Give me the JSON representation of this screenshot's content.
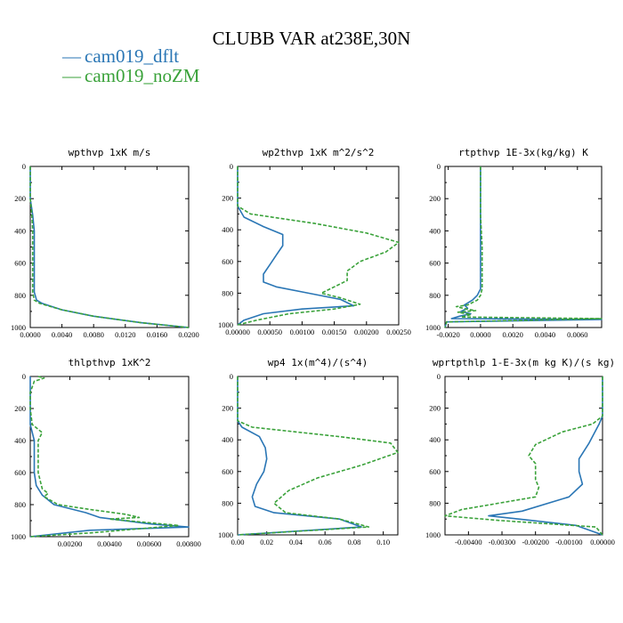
{
  "title": "CLUBB VAR at238E,30N",
  "colors": {
    "dflt": "#2a76b5",
    "noZM": "#3aa23a"
  },
  "legend": [
    {
      "label": "cam019_dflt",
      "color": "#2a76b5",
      "symbol": "—"
    },
    {
      "label": "cam019_noZM",
      "color": "#3aa23a",
      "symbol": "—"
    }
  ],
  "chart_data": [
    {
      "type": "line",
      "title": "wpthvp  1xK m/s",
      "xlim": [
        0,
        0.02
      ],
      "ylim": [
        1000,
        0
      ],
      "xticks": [
        0.0,
        0.004,
        0.008,
        0.012,
        0.016,
        0.02
      ],
      "xtick_labels": [
        "0.0000",
        "0.0040",
        "0.0080",
        "0.0120",
        "0.0160",
        "0.0200"
      ],
      "yticks": [
        0,
        200,
        400,
        600,
        800,
        1000
      ],
      "ytick_labels": [
        "0",
        "200",
        "400",
        "600",
        "800",
        "1000"
      ],
      "series": [
        {
          "name": "cam019_dflt",
          "points": [
            [
              0.0,
              0
            ],
            [
              0.0,
              200
            ],
            [
              0.0003,
              300
            ],
            [
              0.0005,
              400
            ],
            [
              0.0005,
              500
            ],
            [
              0.0005,
              600
            ],
            [
              0.0005,
              700
            ],
            [
              0.0005,
              780
            ],
            [
              0.0008,
              830
            ],
            [
              0.0015,
              850
            ],
            [
              0.004,
              890
            ],
            [
              0.008,
              930
            ],
            [
              0.014,
              970
            ],
            [
              0.02,
              1000
            ]
          ]
        },
        {
          "name": "cam019_noZM",
          "points": [
            [
              0.0,
              0
            ],
            [
              0.0,
              200
            ],
            [
              0.0002,
              300
            ],
            [
              0.0003,
              400
            ],
            [
              0.0003,
              500
            ],
            [
              0.0003,
              600
            ],
            [
              0.0003,
              700
            ],
            [
              0.0003,
              780
            ],
            [
              0.0005,
              830
            ],
            [
              0.0012,
              850
            ],
            [
              0.004,
              890
            ],
            [
              0.008,
              930
            ],
            [
              0.014,
              970
            ],
            [
              0.02,
              1000
            ]
          ]
        }
      ]
    },
    {
      "type": "line",
      "title": "wp2thvp  1xK m^2/s^2",
      "xlim": [
        0,
        0.0025
      ],
      "ylim": [
        1000,
        0
      ],
      "xticks": [
        0.0,
        0.0005,
        0.001,
        0.0015,
        0.002,
        0.0025
      ],
      "xtick_labels": [
        "0.00000",
        "0.00050",
        "0.00100",
        "0.00150",
        "0.00200",
        "0.00250"
      ],
      "yticks": [
        0,
        200,
        400,
        600,
        800,
        1000
      ],
      "ytick_labels": [
        "0",
        "200",
        "400",
        "600",
        "800",
        "1000"
      ],
      "series": [
        {
          "name": "cam019_dflt",
          "points": [
            [
              0.0,
              0
            ],
            [
              0.0,
              150
            ],
            [
              0.0,
              250
            ],
            [
              0.0001,
              320
            ],
            [
              0.0004,
              380
            ],
            [
              0.0007,
              430
            ],
            [
              0.0007,
              500
            ],
            [
              0.0006,
              560
            ],
            [
              0.0005,
              620
            ],
            [
              0.0004,
              680
            ],
            [
              0.0004,
              730
            ],
            [
              0.0006,
              760
            ],
            [
              0.0011,
              800
            ],
            [
              0.0016,
              840
            ],
            [
              0.0018,
              880
            ],
            [
              0.001,
              900
            ],
            [
              0.0004,
              930
            ],
            [
              0.0001,
              970
            ],
            [
              0.0,
              1000
            ]
          ]
        },
        {
          "name": "cam019_noZM",
          "points": [
            [
              0.0,
              0
            ],
            [
              0.0,
              150
            ],
            [
              0.0,
              250
            ],
            [
              0.0002,
              300
            ],
            [
              0.0012,
              360
            ],
            [
              0.002,
              420
            ],
            [
              0.0025,
              480
            ],
            [
              0.0023,
              540
            ],
            [
              0.0019,
              600
            ],
            [
              0.0017,
              660
            ],
            [
              0.0017,
              720
            ],
            [
              0.0015,
              760
            ],
            [
              0.0013,
              800
            ],
            [
              0.0016,
              830
            ],
            [
              0.0019,
              870
            ],
            [
              0.0015,
              900
            ],
            [
              0.0008,
              930
            ],
            [
              0.0003,
              970
            ],
            [
              0.0,
              1000
            ]
          ]
        }
      ]
    },
    {
      "type": "line",
      "title": "rtpthvp  1E-3x(kg/kg) K",
      "xlim": [
        -0.0022,
        0.0075
      ],
      "ylim": [
        1000,
        0
      ],
      "xticks": [
        -0.002,
        0.0,
        0.002,
        0.004,
        0.006
      ],
      "xtick_labels": [
        "-0.0020",
        "0.0000",
        "0.0020",
        "0.0040",
        "0.0060"
      ],
      "yticks": [
        0,
        200,
        400,
        600,
        800,
        1000
      ],
      "ytick_labels": [
        "0",
        "200",
        "400",
        "600",
        "800",
        "1000"
      ],
      "series": [
        {
          "name": "cam019_dflt",
          "points": [
            [
              0.0,
              0
            ],
            [
              0.0,
              300
            ],
            [
              0.0,
              500
            ],
            [
              0.0,
              650
            ],
            [
              0.0,
              760
            ],
            [
              -0.0002,
              800
            ],
            [
              -0.0005,
              830
            ],
            [
              -0.001,
              860
            ],
            [
              -0.0008,
              880
            ],
            [
              -0.0012,
              900
            ],
            [
              -0.0006,
              915
            ],
            [
              -0.0013,
              930
            ],
            [
              -0.0018,
              945
            ],
            [
              0.0075,
              950
            ],
            [
              -0.0021,
              965
            ],
            [
              -0.0022,
              1000
            ]
          ]
        },
        {
          "name": "cam019_noZM",
          "points": [
            [
              0.0,
              0
            ],
            [
              0.0,
              300
            ],
            [
              0.0001,
              500
            ],
            [
              0.0001,
              650
            ],
            [
              0.0001,
              760
            ],
            [
              0.0,
              800
            ],
            [
              -0.0002,
              830
            ],
            [
              -0.0008,
              860
            ],
            [
              -0.0015,
              870
            ],
            [
              -0.0009,
              885
            ],
            [
              -0.0003,
              895
            ],
            [
              -0.0014,
              905
            ],
            [
              -0.0006,
              920
            ],
            [
              -0.0012,
              935
            ],
            [
              0.0075,
              945
            ],
            [
              -0.0021,
              965
            ],
            [
              -0.0022,
              1000
            ]
          ]
        }
      ]
    },
    {
      "type": "line",
      "title": "thlpthvp  1xK^2",
      "xlim": [
        0,
        0.008
      ],
      "ylim": [
        1000,
        0
      ],
      "xticks": [
        0.002,
        0.004,
        0.006,
        0.008
      ],
      "xtick_labels": [
        "0.00200",
        "0.00400",
        "0.00600",
        "0.00800"
      ],
      "yticks": [
        0,
        200,
        400,
        600,
        800,
        1000
      ],
      "ytick_labels": [
        "0",
        "200",
        "400",
        "600",
        "800",
        "1000"
      ],
      "series": [
        {
          "name": "cam019_dflt",
          "points": [
            [
              0.0,
              0
            ],
            [
              0.0,
              200
            ],
            [
              0.0,
              300
            ],
            [
              0.0002,
              400
            ],
            [
              0.0002,
              500
            ],
            [
              0.0002,
              600
            ],
            [
              0.0003,
              680
            ],
            [
              0.0006,
              740
            ],
            [
              0.0012,
              800
            ],
            [
              0.0028,
              850
            ],
            [
              0.0035,
              880
            ],
            [
              0.006,
              920
            ],
            [
              0.008,
              940
            ],
            [
              0.003,
              960
            ],
            [
              0.0,
              1000
            ]
          ]
        },
        {
          "name": "cam019_noZM",
          "points": [
            [
              0.0004,
              0
            ],
            [
              0.0007,
              10
            ],
            [
              0.0002,
              30
            ],
            [
              0.0,
              100
            ],
            [
              0.0,
              200
            ],
            [
              0.0001,
              300
            ],
            [
              0.0006,
              350
            ],
            [
              0.0004,
              400
            ],
            [
              0.0004,
              500
            ],
            [
              0.0004,
              600
            ],
            [
              0.0006,
              700
            ],
            [
              0.0009,
              730
            ],
            [
              0.0007,
              750
            ],
            [
              0.0014,
              800
            ],
            [
              0.003,
              830
            ],
            [
              0.0048,
              860
            ],
            [
              0.0055,
              880
            ],
            [
              0.004,
              890
            ],
            [
              0.0075,
              930
            ],
            [
              0.0032,
              975
            ],
            [
              0.0,
              1000
            ]
          ]
        }
      ]
    },
    {
      "type": "line",
      "title": "wp4  1x(m^4)/(s^4)",
      "xlim": [
        0,
        0.11
      ],
      "ylim": [
        1000,
        0
      ],
      "xticks": [
        0.0,
        0.02,
        0.04,
        0.06,
        0.08,
        0.1
      ],
      "xtick_labels": [
        "0.00",
        "0.02",
        "0.04",
        "0.06",
        "0.08",
        "0.10"
      ],
      "yticks": [
        0,
        200,
        400,
        600,
        800,
        1000
      ],
      "ytick_labels": [
        "0",
        "200",
        "400",
        "600",
        "800",
        "1000"
      ],
      "series": [
        {
          "name": "cam019_dflt",
          "points": [
            [
              0.0,
              0
            ],
            [
              0.0,
              150
            ],
            [
              0.0,
              280
            ],
            [
              0.003,
              320
            ],
            [
              0.015,
              380
            ],
            [
              0.019,
              450
            ],
            [
              0.02,
              520
            ],
            [
              0.018,
              600
            ],
            [
              0.013,
              680
            ],
            [
              0.01,
              760
            ],
            [
              0.012,
              820
            ],
            [
              0.025,
              860
            ],
            [
              0.07,
              900
            ],
            [
              0.085,
              950
            ],
            [
              0.0,
              1000
            ]
          ]
        },
        {
          "name": "cam019_noZM",
          "points": [
            [
              0.0,
              0
            ],
            [
              0.0,
              150
            ],
            [
              0.0,
              280
            ],
            [
              0.01,
              320
            ],
            [
              0.07,
              380
            ],
            [
              0.105,
              420
            ],
            [
              0.11,
              480
            ],
            [
              0.085,
              560
            ],
            [
              0.055,
              640
            ],
            [
              0.035,
              720
            ],
            [
              0.025,
              800
            ],
            [
              0.033,
              860
            ],
            [
              0.07,
              900
            ],
            [
              0.09,
              950
            ],
            [
              0.0,
              1000
            ]
          ]
        }
      ]
    },
    {
      "type": "line",
      "title": "wprtpthlp  1-E-3x(m kg K)/(s kg)",
      "xlim": [
        -0.0047,
        0.0
      ],
      "ylim": [
        1000,
        0
      ],
      "xticks": [
        -0.004,
        -0.003,
        -0.002,
        -0.001,
        0.0
      ],
      "xtick_labels": [
        "-0.00400",
        "-0.00300",
        "-0.00200",
        "-0.00100",
        "0.00000"
      ],
      "yticks": [
        0,
        200,
        400,
        600,
        800,
        1000
      ],
      "ytick_labels": [
        "0",
        "200",
        "400",
        "600",
        "800",
        "1000"
      ],
      "series": [
        {
          "name": "cam019_dflt",
          "points": [
            [
              0.0,
              0
            ],
            [
              0.0,
              150
            ],
            [
              0.0,
              250
            ],
            [
              -0.0001,
              300
            ],
            [
              -0.0004,
              420
            ],
            [
              -0.0007,
              520
            ],
            [
              -0.0007,
              600
            ],
            [
              -0.0006,
              680
            ],
            [
              -0.001,
              760
            ],
            [
              -0.0024,
              850
            ],
            [
              -0.0034,
              880
            ],
            [
              -0.0025,
              900
            ],
            [
              -0.0008,
              940
            ],
            [
              0.0,
              1000
            ]
          ]
        },
        {
          "name": "cam019_noZM",
          "points": [
            [
              0.0,
              0
            ],
            [
              0.0,
              150
            ],
            [
              0.0,
              250
            ],
            [
              -0.0003,
              300
            ],
            [
              -0.0012,
              350
            ],
            [
              -0.002,
              430
            ],
            [
              -0.0022,
              500
            ],
            [
              -0.002,
              550
            ],
            [
              -0.002,
              600
            ],
            [
              -0.002,
              650
            ],
            [
              -0.0019,
              700
            ],
            [
              -0.002,
              760
            ],
            [
              -0.0042,
              840
            ],
            [
              -0.0047,
              880
            ],
            [
              -0.003,
              910
            ],
            [
              -0.0002,
              950
            ],
            [
              0.0,
              1000
            ]
          ]
        }
      ]
    }
  ]
}
